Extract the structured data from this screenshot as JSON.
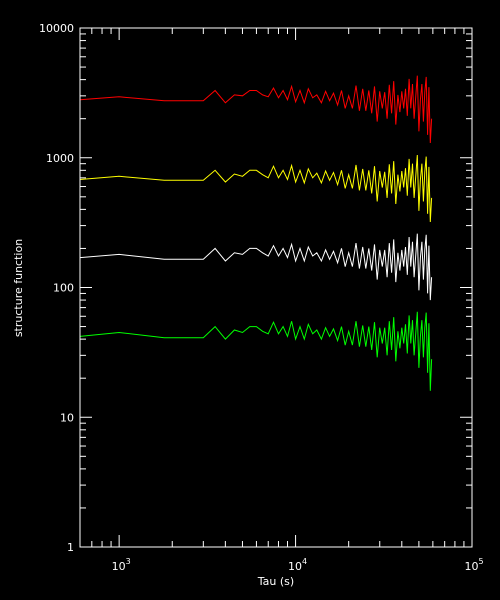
{
  "chart_data": {
    "type": "line",
    "title": "",
    "xlabel": "Tau (s)",
    "ylabel": "structure function",
    "xscale": "log",
    "yscale": "log",
    "xlim": [
      600,
      100000
    ],
    "ylim": [
      1,
      10000
    ],
    "grid": false,
    "background": "#000000",
    "axis_color": "#ffffff",
    "y_ticks": [
      {
        "value": 1,
        "label": "1"
      },
      {
        "value": 10,
        "label": "10"
      },
      {
        "value": 100,
        "label": "100"
      },
      {
        "value": 1000,
        "label": "1000"
      },
      {
        "value": 10000,
        "label": "10000"
      }
    ],
    "x_ticks": [
      {
        "value": 1000,
        "base": "10",
        "exp": "3"
      },
      {
        "value": 10000,
        "base": "10",
        "exp": "4"
      },
      {
        "value": 100000,
        "base": "10",
        "exp": "5"
      }
    ],
    "tau": [
      600,
      1000,
      1800,
      3000,
      3500,
      4000,
      4500,
      5000,
      5500,
      6000,
      6500,
      7000,
      7500,
      8000,
      8500,
      9000,
      9500,
      10000,
      10600,
      11200,
      11800,
      12500,
      13200,
      14000,
      14800,
      15600,
      16400,
      17300,
      18200,
      19100,
      20000,
      21000,
      22000,
      23000,
      24000,
      25000,
      26000,
      27000,
      28000,
      29000,
      30000,
      31000,
      32000,
      33000,
      34000,
      35000,
      36000,
      37000,
      38000,
      39000,
      40000,
      41000,
      42000,
      43000,
      44000,
      45000,
      46000,
      47000,
      48000,
      49000,
      50000,
      51000,
      52000,
      53000,
      54000,
      55000,
      56000,
      57000,
      58000,
      59000
    ],
    "series": [
      {
        "color": "#ff0000",
        "values": [
          2800,
          2950,
          2750,
          2750,
          3300,
          2650,
          3050,
          3000,
          3300,
          3300,
          3050,
          2950,
          3450,
          2900,
          3300,
          2800,
          3550,
          2700,
          3300,
          2650,
          3400,
          2900,
          3050,
          2650,
          3250,
          2750,
          3150,
          2550,
          3300,
          2400,
          3000,
          2400,
          3600,
          2300,
          3400,
          2300,
          3300,
          2200,
          3550,
          1900,
          3250,
          2400,
          3200,
          2000,
          3650,
          2200,
          3900,
          1800,
          3050,
          2250,
          3250,
          2400,
          3400,
          2100,
          4050,
          2400,
          3700,
          2000,
          3000,
          4300,
          1600,
          2800,
          3700,
          1900,
          3200,
          4200,
          1500,
          3500,
          1300,
          2000
        ]
      },
      {
        "color": "#ffff00",
        "values": [
          680,
          720,
          670,
          670,
          800,
          650,
          750,
          720,
          800,
          800,
          740,
          700,
          860,
          700,
          800,
          680,
          870,
          650,
          800,
          640,
          820,
          700,
          760,
          640,
          790,
          670,
          770,
          620,
          800,
          580,
          740,
          580,
          880,
          560,
          820,
          560,
          800,
          530,
          860,
          460,
          790,
          590,
          780,
          490,
          890,
          530,
          940,
          440,
          740,
          550,
          790,
          590,
          830,
          510,
          980,
          590,
          900,
          490,
          730,
          1050,
          390,
          680,
          900,
          460,
          780,
          1020,
          370,
          850,
          320,
          490
        ]
      },
      {
        "color": "#ffffff",
        "values": [
          170,
          180,
          165,
          165,
          200,
          160,
          185,
          180,
          200,
          200,
          185,
          175,
          210,
          175,
          200,
          170,
          215,
          160,
          200,
          160,
          205,
          175,
          185,
          160,
          195,
          165,
          190,
          155,
          200,
          145,
          185,
          145,
          220,
          140,
          205,
          140,
          200,
          135,
          215,
          115,
          195,
          145,
          195,
          120,
          220,
          130,
          235,
          110,
          185,
          135,
          195,
          145,
          205,
          125,
          245,
          145,
          225,
          120,
          180,
          260,
          95,
          170,
          225,
          115,
          195,
          255,
          90,
          210,
          80,
          120
        ]
      },
      {
        "color": "#00ff00",
        "values": [
          42,
          45,
          41,
          41,
          50,
          40,
          47,
          45,
          50,
          50,
          46,
          44,
          54,
          44,
          50,
          42,
          55,
          40,
          50,
          40,
          52,
          44,
          47,
          40,
          49,
          42,
          48,
          39,
          50,
          36,
          46,
          36,
          55,
          35,
          51,
          35,
          50,
          33,
          54,
          29,
          49,
          37,
          49,
          30,
          55,
          33,
          59,
          27,
          46,
          34,
          49,
          37,
          52,
          31,
          61,
          37,
          56,
          30,
          45,
          65,
          24,
          42,
          56,
          29,
          49,
          64,
          22,
          53,
          16,
          28
        ]
      }
    ]
  }
}
